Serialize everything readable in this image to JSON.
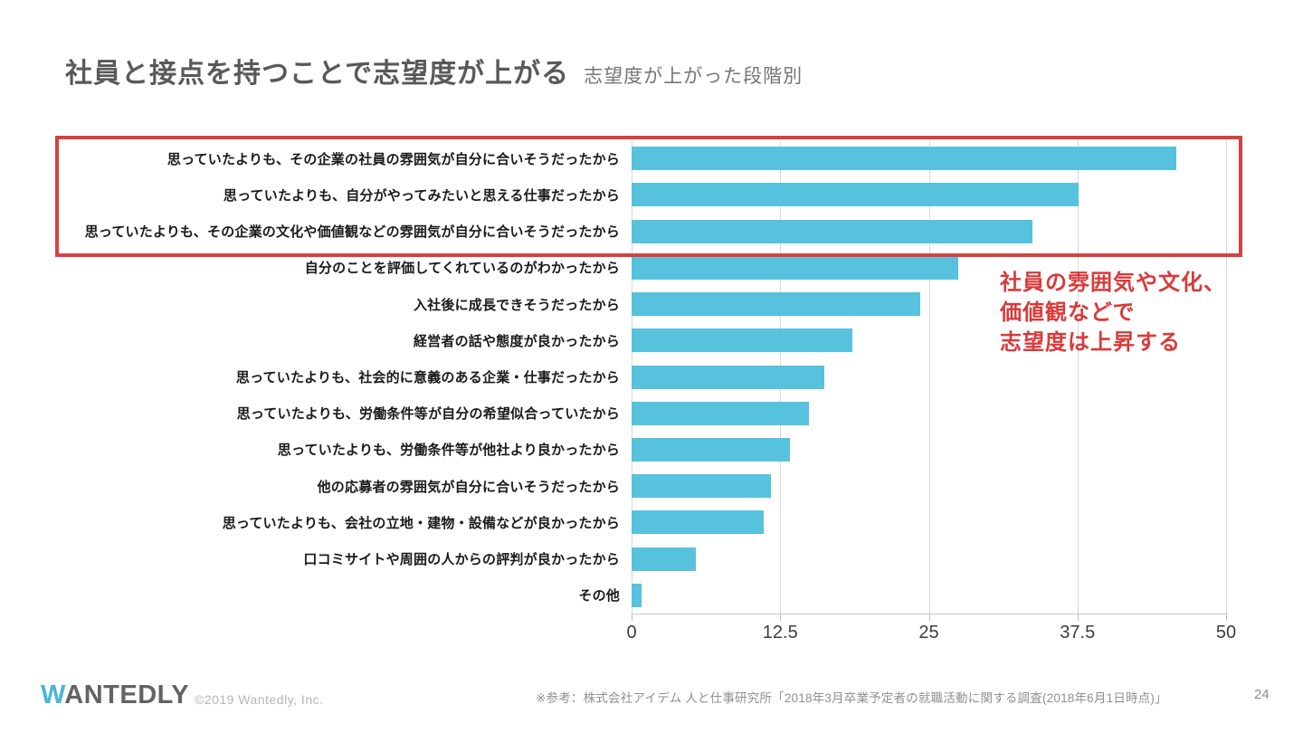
{
  "slide": {
    "title": "社員と接点を持つことで志望度が上がる",
    "subtitle": "志望度が上がった段階別",
    "annotation": [
      "社員の雰囲気や文化、",
      "価値観などで",
      "志望度は上昇する"
    ],
    "annotation_color": "#d93a3a",
    "highlight_box_color": "#d94040",
    "footer": {
      "logo_w": "W",
      "logo_rest": "ANTEDLY",
      "copyright": "©2019 Wantedly, Inc.",
      "reference": "※参考：株式会社アイデム 人と仕事研究所「2018年3月卒業予定者の就職活動に関する調査(2018年6月1日時点)」",
      "page_number": "24"
    }
  },
  "chart_data": {
    "type": "bar",
    "orientation": "horizontal",
    "title": "志望度が上がった段階別",
    "categories": [
      "思っていたよりも、その企業の社員の雰囲気が自分に合いそうだったから",
      "思っていたよりも、自分がやってみたいと思える仕事だったから",
      "思っていたよりも、その企業の文化や価値観などの雰囲気が自分に合いそうだったから",
      "自分のことを評価してくれているのがわかったから",
      "入社後に成長できそうだったから",
      "経営者の話や態度が良かったから",
      "思っていたよりも、社会的に意義のある企業・仕事だったから",
      "思っていたよりも、労働条件等が自分の希望似合っていたから",
      "思っていたよりも、労働条件等が他社より良かったから",
      "他の応募者の雰囲気が自分に合いそうだったから",
      "思っていたよりも、会社の立地・建物・設備などが良かったから",
      "口コミサイトや周囲の人からの評判が良かったから",
      "その他"
    ],
    "values": [
      45.8,
      37.6,
      33.7,
      27.5,
      24.3,
      18.6,
      16.2,
      14.9,
      13.3,
      11.7,
      11.1,
      5.4,
      0.8
    ],
    "xlim": [
      0,
      50
    ],
    "xtick_values": [
      0,
      12.5,
      25,
      37.5,
      50
    ],
    "xtick_labels": [
      "0",
      "12.5",
      "25",
      "37.5",
      "50"
    ],
    "bar_color": "#57c2de",
    "grid": true,
    "highlighted_rows": [
      0,
      1,
      2
    ],
    "legend": "none"
  }
}
